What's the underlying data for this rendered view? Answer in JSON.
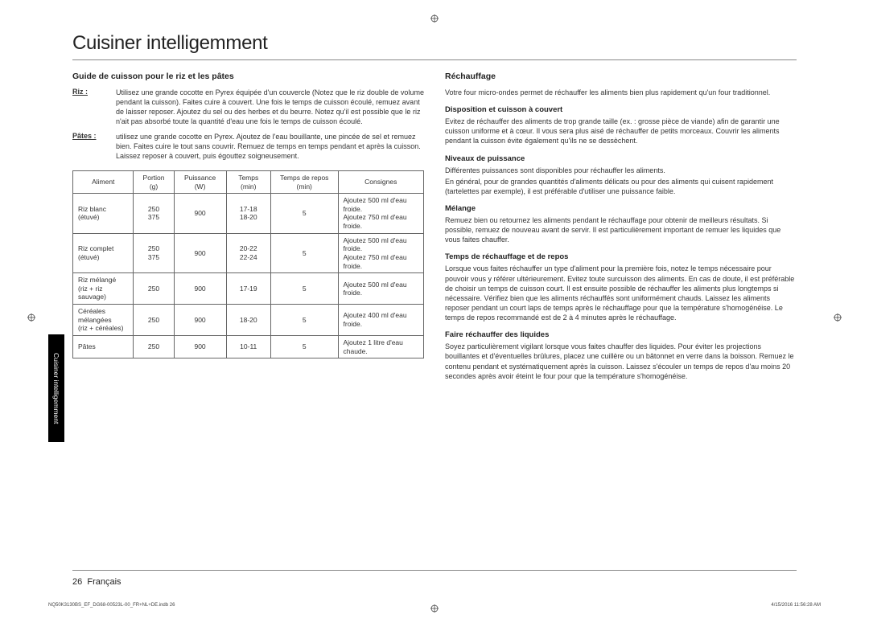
{
  "title": "Cuisiner intelligemment",
  "left": {
    "heading": "Guide de cuisson pour le riz et les pâtes",
    "defs": [
      {
        "term": "Riz :",
        "body": "Utilisez une grande cocotte en Pyrex équipée d'un couvercle (Notez que le riz double de volume pendant la cuisson). Faites cuire à couvert. Une fois le temps de cuisson écoulé, remuez avant de laisser reposer. Ajoutez du sel ou des herbes et du beurre. Notez qu'il est possible que le riz n'ait pas absorbé toute la quantité d'eau une fois le temps de cuisson écoulé."
      },
      {
        "term": "Pâtes :",
        "body": "utilisez une grande cocotte en Pyrex. Ajoutez de l'eau bouillante, une pincée de sel et remuez bien. Faites cuire le tout sans couvrir. Remuez de temps en temps pendant et après la cuisson. Laissez reposer à couvert, puis égouttez soigneusement."
      }
    ],
    "table": {
      "headers": [
        "Aliment",
        "Portion (g)",
        "Puissance (W)",
        "Temps (min)",
        "Temps de repos (min)",
        "Consignes"
      ],
      "rows": [
        {
          "aliment": "Riz blanc\n(étuvé)",
          "portion": "250\n375",
          "watt": "900",
          "temps": "17-18\n18-20",
          "repos": "5",
          "cons": "Ajoutez 500 ml d'eau froide.\nAjoutez 750 ml d'eau froide."
        },
        {
          "aliment": "Riz complet\n(étuvé)",
          "portion": "250\n375",
          "watt": "900",
          "temps": "20-22\n22-24",
          "repos": "5",
          "cons": "Ajoutez 500 ml d'eau froide.\nAjoutez 750 ml d'eau froide."
        },
        {
          "aliment": "Riz mélangé\n(riz + riz sauvage)",
          "portion": "250",
          "watt": "900",
          "temps": "17-19",
          "repos": "5",
          "cons": "Ajoutez 500 ml d'eau froide."
        },
        {
          "aliment": "Céréales\nmélangées\n(riz + céréales)",
          "portion": "250",
          "watt": "900",
          "temps": "18-20",
          "repos": "5",
          "cons": "Ajoutez 400 ml d'eau froide."
        },
        {
          "aliment": "Pâtes",
          "portion": "250",
          "watt": "900",
          "temps": "10-11",
          "repos": "5",
          "cons": "Ajoutez 1 litre d'eau chaude."
        }
      ]
    }
  },
  "right": {
    "heading": "Réchauffage",
    "intro": "Votre four micro-ondes permet de réchauffer les aliments bien plus rapidement qu'un four traditionnel.",
    "sections": [
      {
        "h": "Disposition et cuisson à couvert",
        "p": "Evitez de réchauffer des aliments de trop grande taille (ex. : grosse pièce de viande) afin de garantir une cuisson uniforme et à cœur. Il vous sera plus aisé de réchauffer de petits morceaux. Couvrir les aliments pendant la cuisson évite également qu'ils ne se dessèchent."
      },
      {
        "h": "Niveaux de puissance",
        "p": "Différentes puissances sont disponibles pour réchauffer les aliments.\nEn général, pour de grandes quantités d'aliments délicats ou pour des aliments qui cuisent rapidement (tartelettes par exemple), il est préférable d'utiliser une puissance faible."
      },
      {
        "h": "Mélange",
        "p": "Remuez bien ou retournez les aliments pendant le réchauffage pour obtenir de meilleurs résultats. Si possible, remuez de nouveau avant de servir. Il est particulièrement important de remuer les liquides que vous faites chauffer."
      },
      {
        "h": "Temps de réchauffage et de repos",
        "p": "Lorsque vous faites réchauffer un type d'aliment pour la première fois, notez le temps nécessaire pour pouvoir vous y référer ultérieurement. Evitez toute surcuisson des aliments. En cas de doute, il est préférable de choisir un temps de cuisson court. Il est ensuite possible de réchauffer les aliments plus longtemps si nécessaire. Vérifiez bien que les aliments réchauffés sont uniformément chauds. Laissez les aliments reposer pendant un court laps de temps après le réchauffage pour que la température s'homogénéise. Le temps de repos recommandé est de 2 à 4 minutes après le réchauffage."
      },
      {
        "h": "Faire réchauffer des liquides",
        "p": "Soyez particulièrement vigilant lorsque vous faites chauffer des liquides. Pour éviter les projections bouillantes et d'éventuelles brûlures, placez une cuillère ou un bâtonnet en verre dans la boisson. Remuez le contenu pendant et systématiquement après la cuisson. Laissez s'écouler un temps de repos d'au moins 20 secondes après avoir éteint le four pour que la température s'homogénéise."
      }
    ]
  },
  "sidetab": "Cuisiner intelligemment",
  "footer": {
    "page": "26",
    "lang": "Français"
  },
  "meta": {
    "left": "NQ50K3130BS_EF_DG68-00523L-00_FR+NL+DE.indb   26",
    "right": "4/15/2016   11:56:28 AM"
  }
}
